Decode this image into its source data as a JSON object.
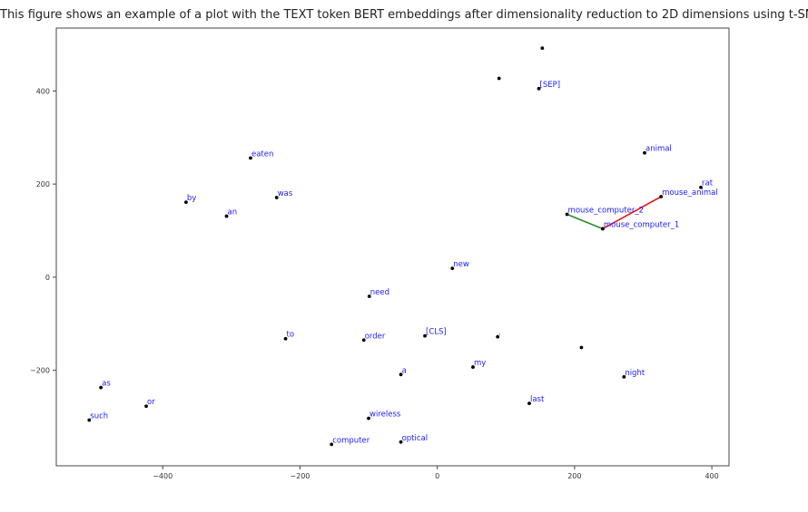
{
  "caption": "This figure shows an example of a plot with the TEXT token BERT embeddings after dimensionality reduction to 2D dimensions using t-SNE.",
  "chart_data": {
    "type": "scatter",
    "title": "",
    "xlabel": "",
    "ylabel": "",
    "xlim": [
      -555,
      425
    ],
    "ylim": [
      -405,
      535
    ],
    "xticks": [
      -400,
      -200,
      0,
      200,
      400
    ],
    "yticks": [
      400,
      200,
      0,
      -200
    ],
    "xtick_labels": [
      "−400",
      "−200",
      "0",
      "200",
      "400"
    ],
    "ytick_labels": [
      "400",
      "200",
      "0",
      "−200"
    ],
    "grid": false,
    "point_color": "#000000",
    "label_color": "#1a1aff",
    "points": [
      {
        "label": "",
        "x": 153,
        "y": 492
      },
      {
        "label": "",
        "x": 90,
        "y": 427
      },
      {
        "label": "[SEP]",
        "x": 148,
        "y": 405
      },
      {
        "label": "animal",
        "x": 302,
        "y": 267
      },
      {
        "label": "eaten",
        "x": -272,
        "y": 256
      },
      {
        "label": "rat",
        "x": 384,
        "y": 193
      },
      {
        "label": "mouse_animal",
        "x": 326,
        "y": 173
      },
      {
        "label": "was",
        "x": -234,
        "y": 171
      },
      {
        "label": "by",
        "x": -366,
        "y": 161
      },
      {
        "label": "an",
        "x": -307,
        "y": 131
      },
      {
        "label": "mouse_computer_2",
        "x": 189,
        "y": 135
      },
      {
        "label": "mouse_computer_1",
        "x": 241,
        "y": 104
      },
      {
        "label": "new",
        "x": 22,
        "y": 19
      },
      {
        "label": "need",
        "x": -99,
        "y": -41
      },
      {
        "label": "to",
        "x": -221,
        "y": -132
      },
      {
        "label": "order",
        "x": -107,
        "y": -135
      },
      {
        "label": "[CLS]",
        "x": -18,
        "y": -126
      },
      {
        "label": ".",
        "x": 88,
        "y": -128
      },
      {
        "label": "",
        "x": 210,
        "y": -151
      },
      {
        "label": "my",
        "x": 52,
        "y": -193
      },
      {
        "label": "a",
        "x": -53,
        "y": -209
      },
      {
        "label": "night",
        "x": 272,
        "y": -214
      },
      {
        "label": "as",
        "x": -490,
        "y": -237
      },
      {
        "label": "last",
        "x": 134,
        "y": -271
      },
      {
        "label": "or",
        "x": -424,
        "y": -277
      },
      {
        "label": "such",
        "x": -507,
        "y": -307
      },
      {
        "label": "wireless",
        "x": -100,
        "y": -303
      },
      {
        "label": "optical",
        "x": -53,
        "y": -354
      },
      {
        "label": "computer",
        "x": -154,
        "y": -359
      }
    ],
    "connections": [
      {
        "from": "mouse_computer_2",
        "to": "mouse_computer_1",
        "color": "#2a8a2a"
      },
      {
        "from": "mouse_computer_1",
        "to": "mouse_animal",
        "color": "#e8191e"
      }
    ]
  }
}
